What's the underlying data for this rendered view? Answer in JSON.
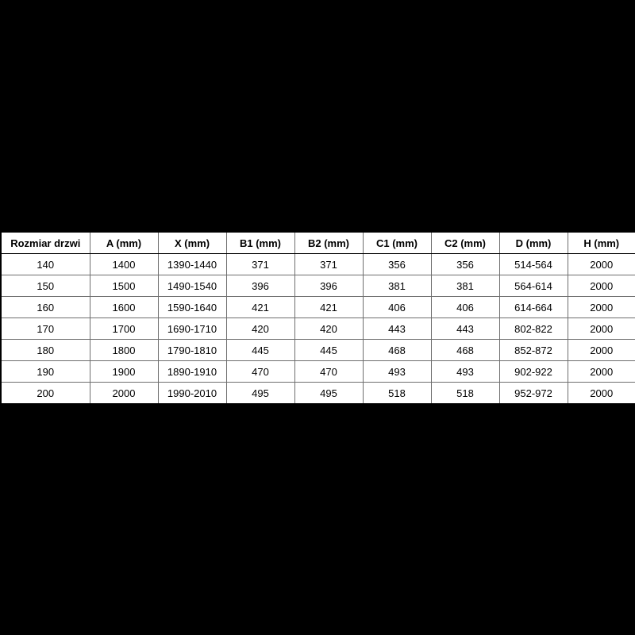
{
  "background_color": "#000000",
  "table_background_color": "#ffffff",
  "grid_line_color": "#6e6e6e",
  "text_color": "#000000",
  "chart_data": {
    "type": "table",
    "title": "",
    "columns": [
      "Rozmiar drzwi",
      "A (mm)",
      "X (mm)",
      "B1 (mm)",
      "B2 (mm)",
      "C1 (mm)",
      "C2 (mm)",
      "D (mm)",
      "H (mm)"
    ],
    "rows": [
      [
        "140",
        "1400",
        "1390-1440",
        "371",
        "371",
        "356",
        "356",
        "514-564",
        "2000"
      ],
      [
        "150",
        "1500",
        "1490-1540",
        "396",
        "396",
        "381",
        "381",
        "564-614",
        "2000"
      ],
      [
        "160",
        "1600",
        "1590-1640",
        "421",
        "421",
        "406",
        "406",
        "614-664",
        "2000"
      ],
      [
        "170",
        "1700",
        "1690-1710",
        "420",
        "420",
        "443",
        "443",
        "802-822",
        "2000"
      ],
      [
        "180",
        "1800",
        "1790-1810",
        "445",
        "445",
        "468",
        "468",
        "852-872",
        "2000"
      ],
      [
        "190",
        "1900",
        "1890-1910",
        "470",
        "470",
        "493",
        "493",
        "902-922",
        "2000"
      ],
      [
        "200",
        "2000",
        "1990-2010",
        "495",
        "495",
        "518",
        "518",
        "952-972",
        "2000"
      ]
    ]
  }
}
